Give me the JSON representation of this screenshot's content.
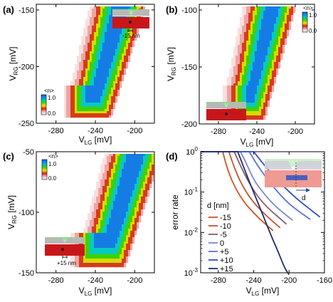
{
  "panels": [
    {
      "id": "a",
      "label": "(a)",
      "type": "heatmap",
      "xlabel_main": "V",
      "xlabel_sub": "LG",
      "xlabel_unit": " [mV]",
      "ylabel_main": "V",
      "ylabel_sub": "RG",
      "ylabel_unit": " [mV]",
      "xlim": [
        -300,
        -180
      ],
      "ylim": [
        -250,
        -145
      ],
      "xticks": [
        "-280",
        "-240",
        "-200"
      ],
      "xtick_values": [
        -280,
        -240,
        -200
      ],
      "yticks": [
        "-150",
        "-200",
        "-250"
      ],
      "ytick_values": [
        -150,
        -200,
        -250
      ],
      "colorbar": {
        "title": "<n>",
        "max_label": "1.0",
        "min_label": "0.0",
        "position": "bottom-left"
      },
      "inset": {
        "annotation": "-15 nm",
        "position": "top-right"
      },
      "map": {
        "left_start": -262,
        "left_slope": 0.5,
        "left_hook": -270,
        "right_start": -230,
        "right_slope": 0.55,
        "y_bottom": -243,
        "y_top": -147
      }
    },
    {
      "id": "b",
      "label": "(b)",
      "type": "heatmap",
      "xlabel_main": "V",
      "xlabel_sub": "LG",
      "xlabel_unit": " [mV]",
      "ylabel_main": "V",
      "ylabel_sub": "RG",
      "ylabel_unit": " [mV]",
      "xlim": [
        -300,
        -180
      ],
      "ylim": [
        -200,
        -95
      ],
      "xticks": [
        "-280",
        "-240",
        "-200"
      ],
      "xtick_values": [
        -280,
        -240,
        -200
      ],
      "yticks": [
        "-100",
        "-150",
        "-200"
      ],
      "ytick_values": [
        -100,
        -150,
        -200
      ],
      "colorbar": {
        "title": "<n>",
        "max_label": "1.0",
        "min_label": "0.0",
        "position": "top-right"
      },
      "inset": {
        "annotation": "",
        "position": "bottom-left"
      },
      "map": {
        "left_start": -268,
        "left_slope": 0.45,
        "left_hook": -272,
        "right_start": -238,
        "right_slope": 0.5,
        "y_bottom": -192,
        "y_top": -97
      }
    },
    {
      "id": "c",
      "label": "(c)",
      "type": "heatmap",
      "xlabel_main": "V",
      "xlabel_sub": "LG",
      "xlabel_unit": " [mV]",
      "ylabel_main": "V",
      "ylabel_sub": "RG",
      "ylabel_unit": " [mV]",
      "xlim": [
        -300,
        -180
      ],
      "ylim": [
        -150,
        -50
      ],
      "xticks": [
        "-280",
        "-240",
        "-200"
      ],
      "xtick_values": [
        -280,
        -240,
        -200
      ],
      "yticks": [
        "-50",
        "-100",
        "-150"
      ],
      "ytick_values": [
        -50,
        -100,
        -150
      ],
      "colorbar": {
        "title": "<n>",
        "max_label": "1.0",
        "min_label": "0.0",
        "position": "top-left"
      },
      "inset": {
        "annotation": "+15 nm",
        "position": "bottom-left"
      },
      "map": {
        "left_start": -250,
        "left_slope": 0.6,
        "left_hook": -262,
        "right_start": -215,
        "right_slope": 0.6,
        "y_bottom": -142,
        "y_top": -52
      }
    }
  ],
  "chart_data": {
    "id": "d",
    "label": "(d)",
    "type": "line",
    "ylabel": "error rate",
    "xlabel_main": "V",
    "xlabel_sub": "LG",
    "xlabel_unit": " [mV]",
    "xlim": [
      -300,
      -160
    ],
    "ylim": [
      0.001,
      1
    ],
    "yscale": "log",
    "xticks": [
      "-280",
      "-240",
      "-200",
      "-160"
    ],
    "xtick_values": [
      -280,
      -240,
      -200,
      -160
    ],
    "yticks": [
      {
        "base": "10",
        "exp": "0",
        "value": 1
      },
      {
        "base": "10",
        "exp": "-1",
        "value": 0.1
      },
      {
        "base": "10",
        "exp": "-2",
        "value": 0.01
      },
      {
        "base": "10",
        "exp": "-3",
        "value": 0.001
      }
    ],
    "legend_title": "d [nm]",
    "legend_position": "left",
    "series": [
      {
        "name": "-15",
        "color": "#d2531f",
        "points": [
          [
            -275,
            1
          ],
          [
            -270,
            0.38
          ],
          [
            -262,
            0.14
          ],
          [
            -252,
            0.06
          ],
          [
            -240,
            0.03
          ],
          [
            -228,
            0.017
          ],
          [
            -218,
            0.011
          ]
        ]
      },
      {
        "name": "-10",
        "color": "#c1542e",
        "points": [
          [
            -268,
            1
          ],
          [
            -262,
            0.4
          ],
          [
            -254,
            0.16
          ],
          [
            -244,
            0.07
          ],
          [
            -232,
            0.035
          ],
          [
            -220,
            0.02
          ],
          [
            -210,
            0.013
          ]
        ]
      },
      {
        "name": "-5",
        "color": "#8a5a6a",
        "points": [
          [
            -262,
            1
          ],
          [
            -255,
            0.45
          ],
          [
            -246,
            0.18
          ],
          [
            -236,
            0.08
          ],
          [
            -224,
            0.04
          ],
          [
            -212,
            0.024
          ],
          [
            -203,
            0.016
          ]
        ]
      },
      {
        "name": "0",
        "color": "#7f88c8",
        "points": [
          [
            -255,
            1
          ],
          [
            -248,
            0.5
          ],
          [
            -240,
            0.2
          ],
          [
            -230,
            0.1
          ],
          [
            -218,
            0.05
          ],
          [
            -206,
            0.03
          ],
          [
            -196,
            0.02
          ]
        ]
      },
      {
        "name": "+5",
        "color": "#5a72d6",
        "points": [
          [
            -245,
            1
          ],
          [
            -238,
            0.55
          ],
          [
            -228,
            0.26
          ],
          [
            -216,
            0.12
          ],
          [
            -202,
            0.055
          ],
          [
            -188,
            0.032
          ],
          [
            -176,
            0.021
          ]
        ]
      },
      {
        "name": "+10",
        "color": "#2f4fc4",
        "points": [
          [
            -240,
            1
          ],
          [
            -232,
            0.6
          ],
          [
            -222,
            0.32
          ],
          [
            -208,
            0.15
          ],
          [
            -192,
            0.07
          ],
          [
            -178,
            0.04
          ],
          [
            -165,
            0.024
          ]
        ]
      },
      {
        "name": "+15",
        "color": "#1e2e6e",
        "points": [
          [
            -258,
            1
          ],
          [
            -252,
            0.45
          ],
          [
            -244,
            0.16
          ],
          [
            -236,
            0.06
          ],
          [
            -228,
            0.022
          ],
          [
            -220,
            0.008
          ],
          [
            -212,
            0.0032
          ],
          [
            -205,
            0.0013
          ],
          [
            -200,
            0.0009
          ]
        ]
      }
    ],
    "inset": {
      "annotation": "d",
      "position": "top-right"
    }
  }
}
